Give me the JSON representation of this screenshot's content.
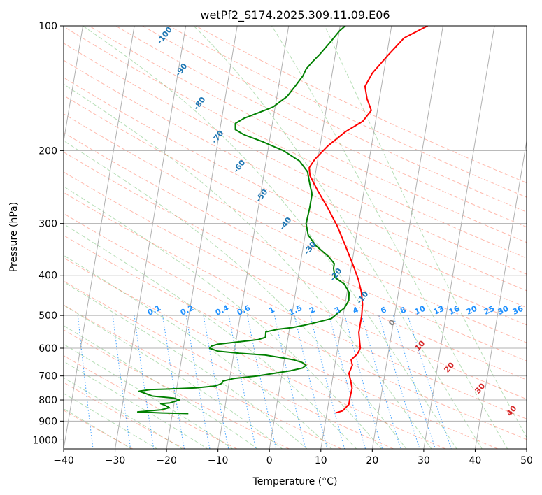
{
  "chart_data": {
    "type": "line",
    "title": "wetPf2_S174.2025.309.11.09.E06",
    "xlabel": "Temperature (°C)",
    "ylabel": "Pressure (hPa)",
    "xlim": [
      -40,
      50
    ],
    "ylim": [
      1050,
      100
    ],
    "y_scale": "log",
    "x_ticks": [
      -40,
      -30,
      -20,
      -10,
      0,
      10,
      20,
      30,
      40,
      50
    ],
    "x_tick_labels": [
      "−40",
      "−30",
      "−20",
      "−10",
      "0",
      "10",
      "20",
      "30",
      "40",
      "50"
    ],
    "y_ticks": [
      1000,
      900,
      800,
      700,
      600,
      500,
      400,
      300,
      200,
      100
    ],
    "y_tick_labels": [
      "1000",
      "900",
      "800",
      "700",
      "600",
      "500",
      "400",
      "300",
      "200",
      "100"
    ],
    "grid": true,
    "series": [
      {
        "key": "temperature",
        "color": "#ff0000",
        "points": [
          [
            11.7,
            860
          ],
          [
            13.0,
            850
          ],
          [
            14.0,
            820
          ],
          [
            14.0,
            790
          ],
          [
            14.1,
            750
          ],
          [
            13.6,
            720
          ],
          [
            13.0,
            690
          ],
          [
            13.4,
            660
          ],
          [
            13.0,
            640
          ],
          [
            14.0,
            620
          ],
          [
            14.4,
            600
          ],
          [
            14.0,
            575
          ],
          [
            13.6,
            550
          ],
          [
            13.6,
            500
          ],
          [
            13.4,
            470
          ],
          [
            12.8,
            440
          ],
          [
            11.8,
            410
          ],
          [
            10.4,
            380
          ],
          [
            8.2,
            340
          ],
          [
            6.0,
            305
          ],
          [
            3.5,
            275
          ],
          [
            1.0,
            250
          ],
          [
            -1.0,
            230
          ],
          [
            -1.4,
            220
          ],
          [
            -0.6,
            210
          ],
          [
            1.5,
            195
          ],
          [
            4.5,
            180
          ],
          [
            7.5,
            170
          ],
          [
            8.8,
            160
          ],
          [
            7.6,
            150
          ],
          [
            6.8,
            140
          ],
          [
            7.8,
            130
          ],
          [
            10.2,
            118
          ],
          [
            12.8,
            107
          ],
          [
            17.0,
            100
          ]
        ]
      },
      {
        "key": "dewpoint",
        "color": "#008000",
        "points": [
          [
            -16.9,
            863
          ],
          [
            -22.0,
            860
          ],
          [
            -26.8,
            855
          ],
          [
            -22.3,
            845
          ],
          [
            -20.8,
            835
          ],
          [
            -21.8,
            823
          ],
          [
            -22.6,
            817
          ],
          [
            -20.8,
            813
          ],
          [
            -19.1,
            800
          ],
          [
            -20.2,
            792
          ],
          [
            -24.4,
            783
          ],
          [
            -25.4,
            775
          ],
          [
            -27.2,
            762
          ],
          [
            -25.0,
            755
          ],
          [
            -22.0,
            753
          ],
          [
            -16.2,
            748
          ],
          [
            -12.5,
            740
          ],
          [
            -11.4,
            730
          ],
          [
            -11.2,
            720
          ],
          [
            -9.2,
            710
          ],
          [
            -4.8,
            700
          ],
          [
            -1.6,
            690
          ],
          [
            1.6,
            680
          ],
          [
            3.8,
            670
          ],
          [
            4.4,
            660
          ],
          [
            3.6,
            650
          ],
          [
            1.8,
            640
          ],
          [
            -0.8,
            632
          ],
          [
            -4.0,
            623
          ],
          [
            -9.0,
            617
          ],
          [
            -13.2,
            610
          ],
          [
            -14.9,
            600
          ],
          [
            -14.6,
            593
          ],
          [
            -13.5,
            587
          ],
          [
            -9.8,
            580
          ],
          [
            -5.7,
            572
          ],
          [
            -4.4,
            565
          ],
          [
            -4.5,
            548
          ],
          [
            -2.2,
            540
          ],
          [
            0.5,
            535
          ],
          [
            2.8,
            528
          ],
          [
            5.2,
            519
          ],
          [
            7.8,
            509
          ],
          [
            8.8,
            495
          ],
          [
            10.0,
            480
          ],
          [
            10.6,
            460
          ],
          [
            10.4,
            440
          ],
          [
            9.2,
            420
          ],
          [
            7.2,
            405
          ],
          [
            6.6,
            385
          ],
          [
            6.6,
            375
          ],
          [
            5.2,
            360
          ],
          [
            2.5,
            340
          ],
          [
            0.6,
            320
          ],
          [
            -0.2,
            300
          ],
          [
            0.0,
            275
          ],
          [
            0.0,
            255
          ],
          [
            -0.8,
            240
          ],
          [
            -1.6,
            225
          ],
          [
            -3.5,
            212
          ],
          [
            -7.0,
            200
          ],
          [
            -11.5,
            190
          ],
          [
            -15.2,
            183
          ],
          [
            -17.0,
            178
          ],
          [
            -17.2,
            172
          ],
          [
            -15.6,
            167
          ],
          [
            -13.0,
            162
          ],
          [
            -10.4,
            157
          ],
          [
            -8.0,
            148
          ],
          [
            -6.8,
            140
          ],
          [
            -5.6,
            132
          ],
          [
            -5.2,
            127
          ],
          [
            -4.2,
            122
          ],
          [
            -3.0,
            117
          ],
          [
            -1.5,
            110
          ],
          [
            0.0,
            103
          ],
          [
            1.0,
            100
          ]
        ]
      }
    ],
    "dry_adiabat_labels": [
      "-100",
      "-90",
      "-80",
      "-70",
      "-60",
      "-50",
      "-40",
      "-30",
      "-20",
      "-10"
    ],
    "moist_adiabat_labels": [
      "0",
      "10",
      "20",
      "30",
      "40"
    ],
    "mixing_ratio_labels": [
      "0.1",
      "0.2",
      "0.4",
      "0.6",
      "1",
      "1.5",
      "2",
      "3",
      "4",
      "6",
      "8",
      "10",
      "13",
      "16",
      "20",
      "25",
      "30",
      "36"
    ]
  }
}
